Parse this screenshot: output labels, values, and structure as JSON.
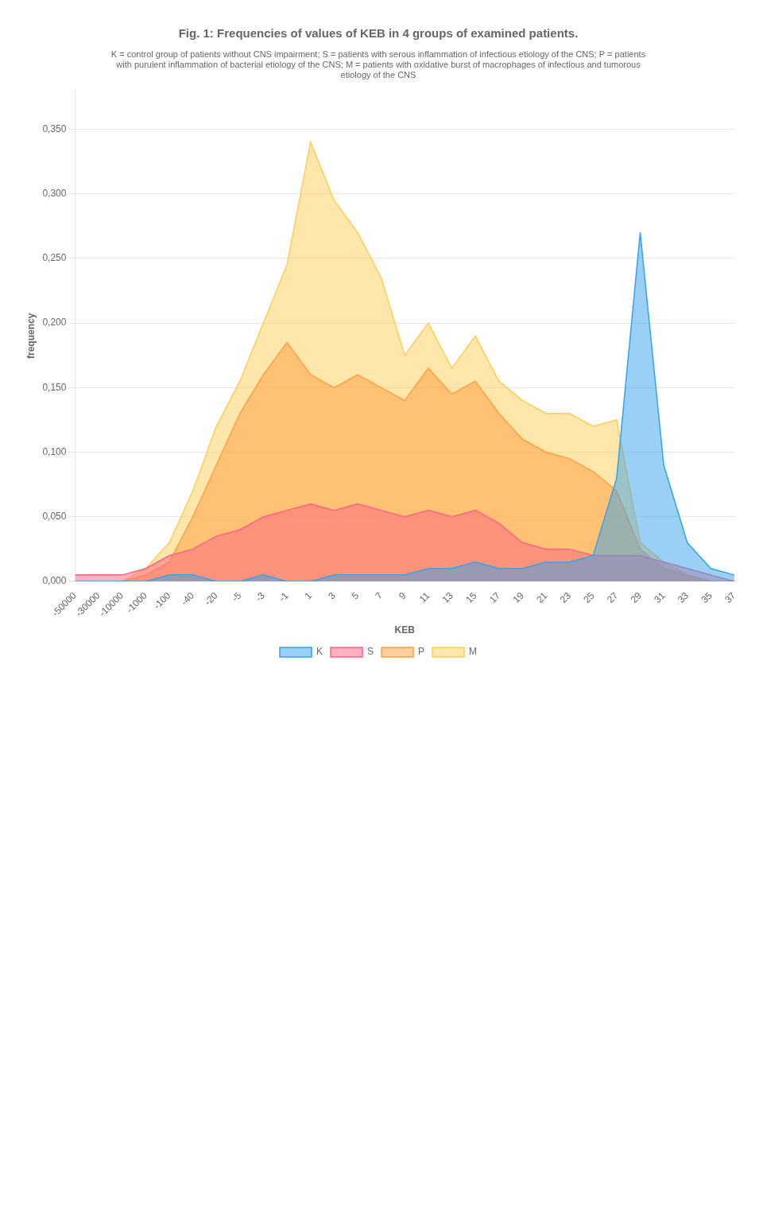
{
  "chart_data": {
    "type": "area",
    "title": "Fig. 1: Frequencies of values of KEB in 4 groups of examined patients.",
    "subtitle": "K = control group of patients without CNS impairment; S = patients with serous inflammation of infectious etiology of the CNS; P = patients\nwith purulent inflammation of bacterial etiology of the CNS; M = patients with oxidative burst of macrophages of infectious and tumorous\netiology of the CNS",
    "x_label": "KEB",
    "y_label": "frequency",
    "categories": [
      "-50000",
      "-30000",
      "-10000",
      "-1000",
      "-100",
      "-40",
      "-20",
      "-5",
      "-3",
      "-1",
      "1",
      "3",
      "5",
      "7",
      "9",
      "11",
      "13",
      "15",
      "17",
      "19",
      "21",
      "23",
      "25",
      "27",
      "29",
      "31",
      "33",
      "35",
      "37"
    ],
    "series": [
      {
        "name": "K",
        "values": [
          0.0,
          0.0,
          0.0,
          0.0,
          0.005,
          0.005,
          0.0,
          0.0,
          0.005,
          0.0,
          0.0,
          0.005,
          0.005,
          0.005,
          0.005,
          0.01,
          0.01,
          0.015,
          0.01,
          0.01,
          0.015,
          0.015,
          0.02,
          0.08,
          0.27,
          0.09,
          0.03,
          0.01,
          0.005
        ]
      },
      {
        "name": "S",
        "values": [
          0.005,
          0.005,
          0.005,
          0.01,
          0.02,
          0.025,
          0.035,
          0.04,
          0.05,
          0.055,
          0.06,
          0.055,
          0.06,
          0.055,
          0.05,
          0.055,
          0.05,
          0.055,
          0.045,
          0.03,
          0.025,
          0.025,
          0.02,
          0.02,
          0.02,
          0.015,
          0.01,
          0.005,
          0.0
        ]
      },
      {
        "name": "P",
        "values": [
          0.0,
          0.0,
          0.0,
          0.005,
          0.015,
          0.05,
          0.09,
          0.13,
          0.16,
          0.185,
          0.16,
          0.15,
          0.16,
          0.15,
          0.14,
          0.165,
          0.145,
          0.155,
          0.13,
          0.11,
          0.1,
          0.095,
          0.085,
          0.07,
          0.025,
          0.01,
          0.005,
          0.0,
          0.0
        ]
      },
      {
        "name": "M",
        "values": [
          0.0,
          0.0,
          0.0,
          0.01,
          0.03,
          0.07,
          0.12,
          0.155,
          0.2,
          0.245,
          0.34,
          0.295,
          0.27,
          0.235,
          0.175,
          0.2,
          0.165,
          0.19,
          0.155,
          0.14,
          0.13,
          0.13,
          0.12,
          0.125,
          0.03,
          0.015,
          0.005,
          0.0,
          0.0
        ]
      }
    ],
    "ylim": [
      0,
      0.38
    ],
    "yticks": [
      {
        "value": 0,
        "label": "0,000"
      },
      {
        "value": 0.05,
        "label": "0,050"
      },
      {
        "value": 0.1,
        "label": "0,100"
      },
      {
        "value": 0.15,
        "label": "0,150"
      },
      {
        "value": 0.2,
        "label": "0,200"
      },
      {
        "value": 0.25,
        "label": "0,250"
      },
      {
        "value": 0.3,
        "label": "0,300"
      },
      {
        "value": 0.35,
        "label": "0,350"
      }
    ],
    "grid": true,
    "legend": "bottom"
  }
}
